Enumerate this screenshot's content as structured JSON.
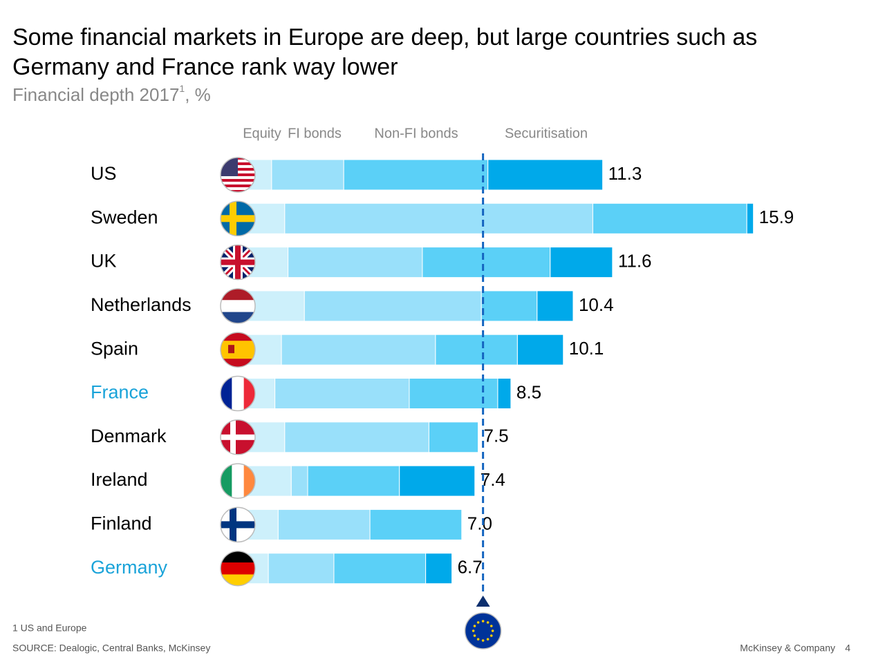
{
  "chart_data": {
    "type": "stacked-bar-horizontal",
    "title": [
      "Some financial markets in Europe are deep, but large countries such as",
      "Germany and France rank way lower"
    ],
    "subtitle": [
      "Financial depth 2017",
      "1",
      ", %"
    ],
    "categories": [
      "US",
      "Sweden",
      "UK",
      "Netherlands",
      "Spain",
      "France",
      "Denmark",
      "Ireland",
      "Finland",
      "Germany"
    ],
    "category_colors": [
      "#000000",
      "#000000",
      "#000000",
      "#000000",
      "#000000",
      "#1aa3d9",
      "#000000",
      "#000000",
      "#000000",
      "#1aa3d9"
    ],
    "series": [
      {
        "name": "Equity",
        "color": "#cdf0fb",
        "values": [
          1.2,
          1.6,
          1.7,
          2.2,
          1.5,
          1.3,
          1.6,
          1.8,
          1.4,
          1.1
        ]
      },
      {
        "name": "FI bonds",
        "color": "#99e0fa",
        "values": [
          2.2,
          9.4,
          4.1,
          5.4,
          4.7,
          4.1,
          4.4,
          0.5,
          2.8,
          2.0
        ]
      },
      {
        "name": "Non-FI bonds",
        "color": "#5bd0f7",
        "values": [
          4.4,
          4.7,
          3.9,
          1.7,
          2.5,
          2.7,
          1.5,
          2.8,
          2.8,
          2.8
        ]
      },
      {
        "name": "Securitisation",
        "color": "#00a9ea",
        "values": [
          3.5,
          0.2,
          1.9,
          1.1,
          1.4,
          0.4,
          0,
          2.3,
          0,
          0.8
        ]
      }
    ],
    "totals": [
      11.3,
      15.9,
      11.6,
      10.4,
      10.1,
      8.5,
      7.5,
      7.4,
      7.0,
      6.7
    ],
    "value_labels": [
      "11.3",
      "15.9",
      "11.6",
      "10.4",
      "10.1",
      "8.5",
      "7.5",
      "7.4",
      "7.0",
      "6.7"
    ],
    "reference_value": 7.65,
    "reference_color": "#1565c0",
    "footnote": "1 US and Europe",
    "source": "SOURCE: Dealogic, Central Banks, McKinsey",
    "brand": "McKinsey & Company",
    "page_number": "4"
  }
}
